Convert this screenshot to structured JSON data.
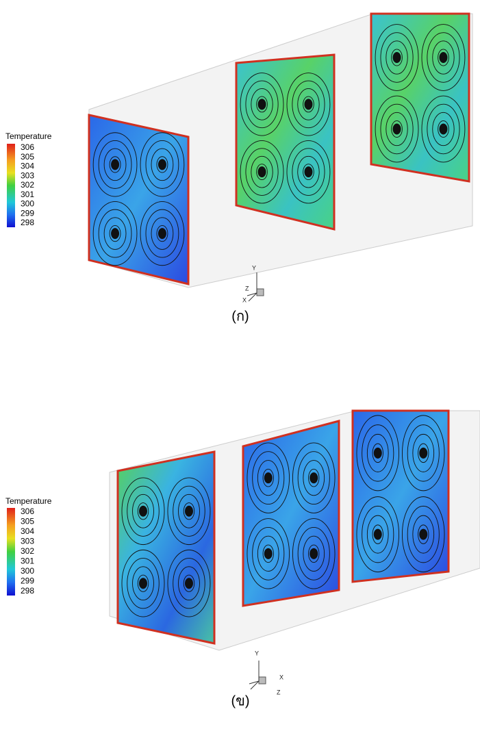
{
  "panels": [
    {
      "legend": {
        "title": "Temperature",
        "ticks": [
          306,
          305,
          304,
          303,
          302,
          301,
          300,
          299,
          298
        ]
      },
      "axes": [
        "Y",
        "Z",
        "X"
      ],
      "caption": "(ก)"
    },
    {
      "legend": {
        "title": "Temperature",
        "ticks": [
          306,
          305,
          304,
          303,
          302,
          301,
          300,
          299,
          298
        ]
      },
      "axes": [
        "Y",
        "X",
        "Z"
      ],
      "caption": "(ข)"
    }
  ]
}
